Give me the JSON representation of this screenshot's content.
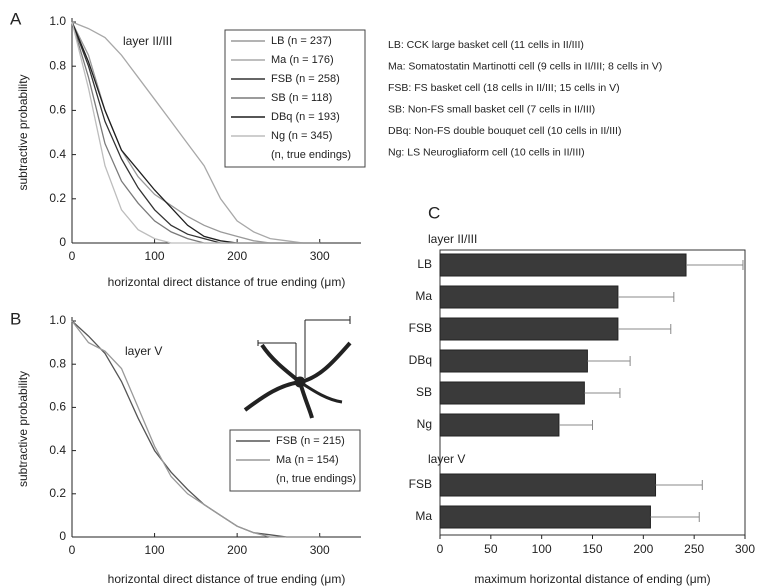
{
  "chart_data": [
    {
      "type": "line",
      "panel": "A",
      "annotation": "layer II/III",
      "x_label": "horizontal direct distance of true ending (μm)",
      "y_label": "subtractive probability",
      "x": [
        0,
        20,
        40,
        60,
        80,
        100,
        120,
        140,
        160,
        180,
        200,
        220,
        240,
        260,
        280,
        300
      ],
      "series": [
        {
          "name": "LB (n = 237)",
          "color": "#9a9a9a",
          "values": [
            1,
            0.85,
            0.6,
            0.42,
            0.3,
            0.22,
            0.17,
            0.12,
            0.08,
            0.05,
            0.03,
            0.01,
            0,
            0,
            0,
            0
          ]
        },
        {
          "name": "Ma (n = 176)",
          "color": "#a8a8a8",
          "values": [
            1,
            0.97,
            0.93,
            0.85,
            0.75,
            0.65,
            0.55,
            0.45,
            0.35,
            0.2,
            0.1,
            0.05,
            0.02,
            0.01,
            0,
            0
          ]
        },
        {
          "name": "FSB (n = 258)",
          "color": "#333333",
          "values": [
            1,
            0.8,
            0.55,
            0.38,
            0.25,
            0.15,
            0.08,
            0.04,
            0.02,
            0,
            0,
            0,
            0,
            0,
            0,
            0
          ]
        },
        {
          "name": "SB (n = 118)",
          "color": "#7a7a7a",
          "values": [
            1,
            0.75,
            0.45,
            0.28,
            0.18,
            0.1,
            0.05,
            0.02,
            0,
            0,
            0,
            0,
            0,
            0,
            0,
            0
          ]
        },
        {
          "name": "DBq (n = 193)",
          "color": "#1e1e1e",
          "values": [
            1,
            0.82,
            0.6,
            0.42,
            0.33,
            0.24,
            0.16,
            0.08,
            0.03,
            0.01,
            0,
            0,
            0,
            0,
            0,
            0
          ]
        },
        {
          "name": "Ng (n = 345)",
          "color": "#bdbdbd",
          "values": [
            1,
            0.7,
            0.35,
            0.15,
            0.06,
            0.02,
            0,
            0,
            0,
            0,
            0,
            0,
            0,
            0,
            0,
            0
          ]
        }
      ],
      "legend_note": "(n, true endings)",
      "xlim": [
        0,
        350
      ],
      "xticks": [
        0,
        100,
        200,
        300
      ],
      "ylim": [
        0,
        1
      ],
      "yticks": [
        0,
        0.2,
        0.4,
        0.6,
        0.8,
        {
          "value": 1,
          "label": "1.0"
        }
      ]
    },
    {
      "type": "line",
      "panel": "B",
      "annotation": "layer V",
      "x_label": "horizontal direct distance of true ending (μm)",
      "y_label": "subtractive probability",
      "x": [
        0,
        20,
        40,
        60,
        80,
        100,
        120,
        140,
        160,
        180,
        200,
        220,
        240,
        260,
        280,
        300
      ],
      "series": [
        {
          "name": "FSB (n = 215)",
          "color": "#555555",
          "values": [
            1,
            0.93,
            0.85,
            0.72,
            0.55,
            0.4,
            0.3,
            0.22,
            0.15,
            0.1,
            0.05,
            0.02,
            0.01,
            0,
            0,
            0
          ]
        },
        {
          "name": "Ma (n = 154)",
          "color": "#999999",
          "values": [
            1,
            0.9,
            0.86,
            0.78,
            0.6,
            0.42,
            0.28,
            0.2,
            0.15,
            0.1,
            0.05,
            0.02,
            0,
            0,
            0,
            0
          ]
        }
      ],
      "legend_note": "(n, true endings)",
      "xlim": [
        0,
        350
      ],
      "xticks": [
        0,
        100,
        200,
        300
      ],
      "ylim": [
        0,
        1
      ],
      "yticks": [
        0,
        0.2,
        0.4,
        0.6,
        0.8,
        {
          "value": 1,
          "label": "1.0"
        }
      ]
    },
    {
      "type": "hbar",
      "panel": "C",
      "x_label": "maximum horizontal distance of ending (μm)",
      "color": "#3a3a3a",
      "groups": [
        {
          "name": "layer II/III",
          "categories": [
            "LB",
            "Ma",
            "FSB",
            "DBq",
            "SB",
            "Ng"
          ],
          "values": [
            242,
            175,
            175,
            145,
            142,
            117
          ],
          "errors": [
            56,
            55,
            52,
            42,
            35,
            33
          ]
        },
        {
          "name": "layer V",
          "categories": [
            "FSB",
            "Ma"
          ],
          "values": [
            212,
            207
          ],
          "errors": [
            46,
            48
          ]
        }
      ],
      "xlim": [
        0,
        300
      ],
      "xticks": [
        0,
        50,
        100,
        150,
        200,
        250,
        300
      ]
    }
  ],
  "notes": [
    "LB: CCK large basket cell (11 cells in II/III)",
    "Ma: Somatostatin Martinotti cell (9 cells in II/III; 8 cells in V)",
    "FSB: FS basket cell (18 cells in II/III; 15 cells in V)",
    "SB: Non-FS small basket cell (7 cells in II/III)",
    "DBq: Non-FS double bouquet cell (10 cells in II/III)",
    "Ng: LS Neurogliaform cell (10 cells in II/III)"
  ]
}
